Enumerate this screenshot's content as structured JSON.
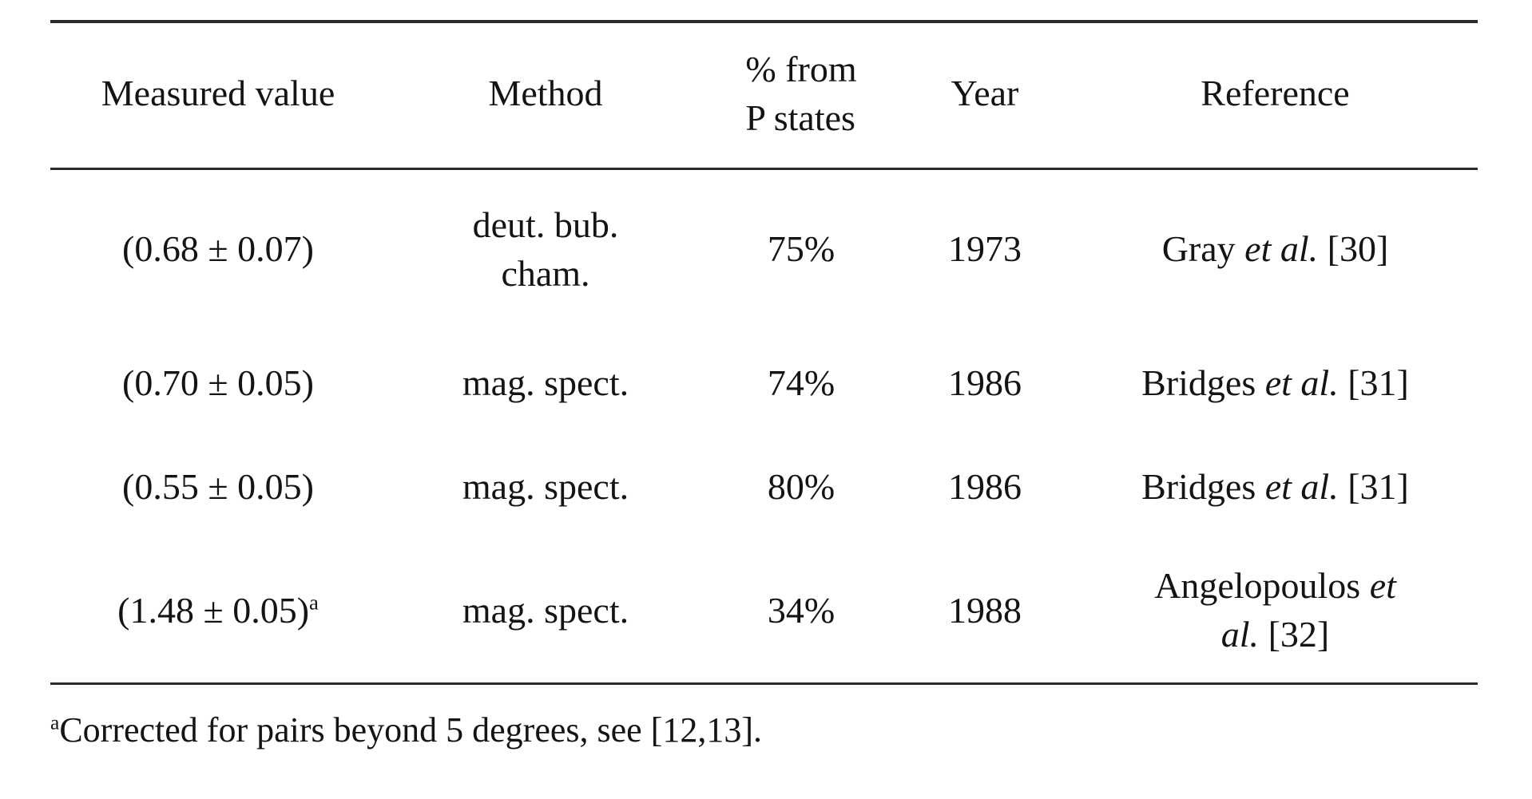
{
  "page": {
    "background": "#ffffff",
    "text_color": "#141414",
    "rule_color": "#2b2b2b"
  },
  "table": {
    "columns": [
      {
        "label": "Measured value"
      },
      {
        "label": "Method"
      },
      {
        "label_lines": [
          "% from",
          "P states"
        ]
      },
      {
        "label": "Year"
      },
      {
        "label": "Reference"
      }
    ],
    "rows": [
      {
        "measured_value": "(0.68 ± 0.07)",
        "method_lines": [
          "deut. bub.",
          "cham."
        ],
        "percent_from_p_states": "75%",
        "year": "1973",
        "reference": {
          "pre": "Gray ",
          "etal": "et al.",
          "post": " [30]"
        }
      },
      {
        "measured_value": "(0.70 ± 0.05)",
        "method_lines": [
          "mag. spect."
        ],
        "percent_from_p_states": "74%",
        "year": "1986",
        "reference": {
          "pre": "Bridges ",
          "etal": "et al.",
          "post": " [31]"
        }
      },
      {
        "measured_value": "(0.55 ± 0.05)",
        "method_lines": [
          "mag. spect."
        ],
        "percent_from_p_states": "80%",
        "year": "1986",
        "reference": {
          "pre": "Bridges ",
          "etal": "et al.",
          "post": " [31]"
        }
      },
      {
        "measured_value": "(1.48 ± 0.05)",
        "measured_value_sup": "a",
        "method_lines": [
          "mag. spect."
        ],
        "percent_from_p_states": "34%",
        "year": "1988",
        "reference": {
          "pre": "Angelopoulos ",
          "etal_line1": "et",
          "etal_line2": "al.",
          "post": " [32]"
        }
      }
    ]
  },
  "footnote": {
    "marker": "a",
    "text": "Corrected for pairs beyond 5 degrees, see [12,13]."
  }
}
